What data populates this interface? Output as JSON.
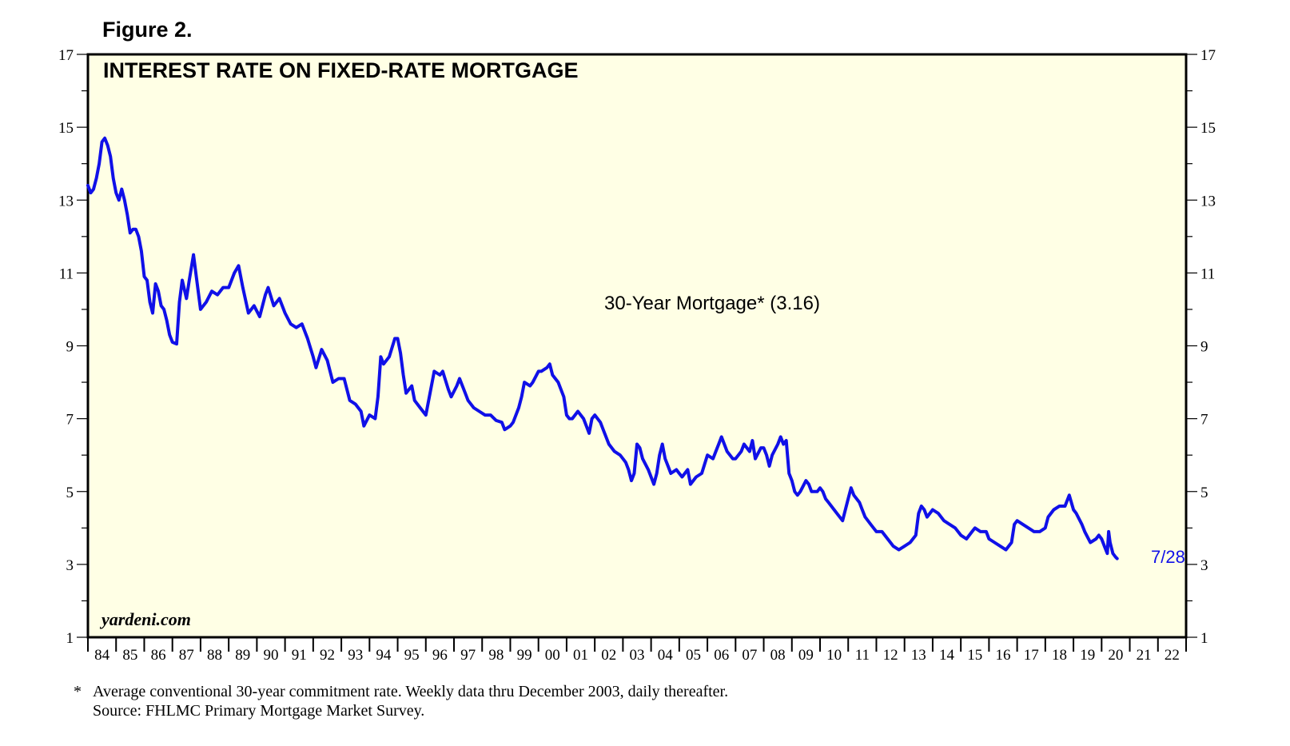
{
  "figure_label": "Figure 2.",
  "footnote": {
    "marker": "*",
    "text": "Average conventional 30-year commitment rate. Weekly data thru December 2003, daily thereafter.",
    "source": "Source: FHLMC Primary Mortgage Market Survey."
  },
  "colors": {
    "plot_background": "#FFFFE5",
    "series_line": "#1010E8",
    "axis": "#000000"
  },
  "chart_data": {
    "type": "line",
    "title": "INTEREST RATE ON FIXED-RATE MORTGAGE",
    "series_label": "30-Year Mortgage* (3.16)",
    "end_label": "7/28",
    "watermark": "yardeni.com",
    "xlabel": "",
    "ylabel": "",
    "ylim": [
      1,
      17
    ],
    "xlim": [
      1984.0,
      2023.0
    ],
    "y_ticks_labeled": [
      1,
      3,
      5,
      7,
      9,
      11,
      13,
      15,
      17
    ],
    "x_tick_labels": [
      "84",
      "85",
      "86",
      "87",
      "88",
      "89",
      "90",
      "91",
      "92",
      "93",
      "94",
      "95",
      "96",
      "97",
      "98",
      "99",
      "00",
      "01",
      "02",
      "03",
      "04",
      "05",
      "06",
      "07",
      "08",
      "09",
      "10",
      "11",
      "12",
      "13",
      "14",
      "15",
      "16",
      "17",
      "18",
      "19",
      "20",
      "21",
      "22"
    ],
    "series": [
      {
        "name": "30-Year Mortgage",
        "points": [
          [
            1984.0,
            13.4
          ],
          [
            1984.1,
            13.2
          ],
          [
            1984.2,
            13.3
          ],
          [
            1984.3,
            13.6
          ],
          [
            1984.4,
            14.0
          ],
          [
            1984.5,
            14.6
          ],
          [
            1984.6,
            14.7
          ],
          [
            1984.7,
            14.5
          ],
          [
            1984.8,
            14.2
          ],
          [
            1984.9,
            13.6
          ],
          [
            1985.0,
            13.2
          ],
          [
            1985.1,
            13.0
          ],
          [
            1985.2,
            13.3
          ],
          [
            1985.3,
            13.0
          ],
          [
            1985.4,
            12.6
          ],
          [
            1985.5,
            12.1
          ],
          [
            1985.6,
            12.2
          ],
          [
            1985.7,
            12.2
          ],
          [
            1985.8,
            12.0
          ],
          [
            1985.9,
            11.6
          ],
          [
            1986.0,
            10.9
          ],
          [
            1986.1,
            10.8
          ],
          [
            1986.2,
            10.2
          ],
          [
            1986.3,
            9.9
          ],
          [
            1986.4,
            10.7
          ],
          [
            1986.5,
            10.5
          ],
          [
            1986.6,
            10.1
          ],
          [
            1986.7,
            10.0
          ],
          [
            1986.8,
            9.7
          ],
          [
            1986.9,
            9.3
          ],
          [
            1987.0,
            9.1
          ],
          [
            1987.15,
            9.05
          ],
          [
            1987.25,
            10.2
          ],
          [
            1987.35,
            10.8
          ],
          [
            1987.5,
            10.3
          ],
          [
            1987.6,
            10.8
          ],
          [
            1987.75,
            11.5
          ],
          [
            1987.85,
            10.9
          ],
          [
            1988.0,
            10.0
          ],
          [
            1988.2,
            10.2
          ],
          [
            1988.4,
            10.5
          ],
          [
            1988.6,
            10.4
          ],
          [
            1988.8,
            10.6
          ],
          [
            1989.0,
            10.6
          ],
          [
            1989.2,
            11.0
          ],
          [
            1989.35,
            11.2
          ],
          [
            1989.5,
            10.6
          ],
          [
            1989.7,
            9.9
          ],
          [
            1989.9,
            10.1
          ],
          [
            1990.1,
            9.8
          ],
          [
            1990.3,
            10.4
          ],
          [
            1990.4,
            10.6
          ],
          [
            1990.6,
            10.1
          ],
          [
            1990.8,
            10.3
          ],
          [
            1991.0,
            9.9
          ],
          [
            1991.2,
            9.6
          ],
          [
            1991.4,
            9.5
          ],
          [
            1991.6,
            9.6
          ],
          [
            1991.8,
            9.2
          ],
          [
            1992.0,
            8.7
          ],
          [
            1992.1,
            8.4
          ],
          [
            1992.3,
            8.9
          ],
          [
            1992.5,
            8.6
          ],
          [
            1992.7,
            8.0
          ],
          [
            1992.9,
            8.1
          ],
          [
            1993.1,
            8.1
          ],
          [
            1993.3,
            7.5
          ],
          [
            1993.5,
            7.4
          ],
          [
            1993.7,
            7.2
          ],
          [
            1993.8,
            6.8
          ],
          [
            1994.0,
            7.1
          ],
          [
            1994.2,
            7.0
          ],
          [
            1994.3,
            7.6
          ],
          [
            1994.4,
            8.7
          ],
          [
            1994.5,
            8.5
          ],
          [
            1994.7,
            8.7
          ],
          [
            1994.9,
            9.2
          ],
          [
            1995.0,
            9.2
          ],
          [
            1995.1,
            8.8
          ],
          [
            1995.2,
            8.2
          ],
          [
            1995.3,
            7.7
          ],
          [
            1995.5,
            7.9
          ],
          [
            1995.6,
            7.5
          ],
          [
            1995.8,
            7.3
          ],
          [
            1996.0,
            7.1
          ],
          [
            1996.2,
            7.9
          ],
          [
            1996.3,
            8.3
          ],
          [
            1996.5,
            8.2
          ],
          [
            1996.6,
            8.3
          ],
          [
            1996.8,
            7.8
          ],
          [
            1996.9,
            7.6
          ],
          [
            1997.1,
            7.9
          ],
          [
            1997.2,
            8.1
          ],
          [
            1997.4,
            7.7
          ],
          [
            1997.5,
            7.5
          ],
          [
            1997.7,
            7.3
          ],
          [
            1997.9,
            7.2
          ],
          [
            1998.1,
            7.1
          ],
          [
            1998.3,
            7.1
          ],
          [
            1998.5,
            6.95
          ],
          [
            1998.7,
            6.9
          ],
          [
            1998.8,
            6.7
          ],
          [
            1999.0,
            6.8
          ],
          [
            1999.1,
            6.9
          ],
          [
            1999.3,
            7.3
          ],
          [
            1999.4,
            7.6
          ],
          [
            1999.5,
            8.0
          ],
          [
            1999.7,
            7.9
          ],
          [
            1999.8,
            8.0
          ],
          [
            2000.0,
            8.3
          ],
          [
            2000.1,
            8.3
          ],
          [
            2000.3,
            8.4
          ],
          [
            2000.4,
            8.5
          ],
          [
            2000.5,
            8.2
          ],
          [
            2000.7,
            8.0
          ],
          [
            2000.9,
            7.6
          ],
          [
            2001.0,
            7.1
          ],
          [
            2001.1,
            7.0
          ],
          [
            2001.2,
            7.0
          ],
          [
            2001.4,
            7.2
          ],
          [
            2001.6,
            7.0
          ],
          [
            2001.7,
            6.8
          ],
          [
            2001.8,
            6.6
          ],
          [
            2001.9,
            7.0
          ],
          [
            2002.0,
            7.1
          ],
          [
            2002.2,
            6.9
          ],
          [
            2002.3,
            6.7
          ],
          [
            2002.5,
            6.3
          ],
          [
            2002.7,
            6.1
          ],
          [
            2002.9,
            6.0
          ],
          [
            2003.0,
            5.9
          ],
          [
            2003.1,
            5.8
          ],
          [
            2003.2,
            5.6
          ],
          [
            2003.3,
            5.3
          ],
          [
            2003.4,
            5.5
          ],
          [
            2003.5,
            6.3
          ],
          [
            2003.6,
            6.2
          ],
          [
            2003.7,
            5.9
          ],
          [
            2003.9,
            5.6
          ],
          [
            2004.0,
            5.4
          ],
          [
            2004.1,
            5.2
          ],
          [
            2004.2,
            5.5
          ],
          [
            2004.3,
            6.0
          ],
          [
            2004.4,
            6.3
          ],
          [
            2004.5,
            5.9
          ],
          [
            2004.6,
            5.7
          ],
          [
            2004.7,
            5.5
          ],
          [
            2004.9,
            5.6
          ],
          [
            2005.0,
            5.5
          ],
          [
            2005.1,
            5.4
          ],
          [
            2005.3,
            5.6
          ],
          [
            2005.4,
            5.2
          ],
          [
            2005.6,
            5.4
          ],
          [
            2005.8,
            5.5
          ],
          [
            2006.0,
            6.0
          ],
          [
            2006.2,
            5.9
          ],
          [
            2006.3,
            6.1
          ],
          [
            2006.4,
            6.3
          ],
          [
            2006.5,
            6.5
          ],
          [
            2006.7,
            6.1
          ],
          [
            2006.9,
            5.9
          ],
          [
            2007.0,
            5.9
          ],
          [
            2007.2,
            6.1
          ],
          [
            2007.3,
            6.3
          ],
          [
            2007.5,
            6.1
          ],
          [
            2007.6,
            6.4
          ],
          [
            2007.7,
            5.9
          ],
          [
            2007.9,
            6.2
          ],
          [
            2008.0,
            6.2
          ],
          [
            2008.1,
            6.0
          ],
          [
            2008.2,
            5.7
          ],
          [
            2008.3,
            6.0
          ],
          [
            2008.5,
            6.3
          ],
          [
            2008.6,
            6.5
          ],
          [
            2008.7,
            6.3
          ],
          [
            2008.8,
            6.4
          ],
          [
            2008.9,
            5.5
          ],
          [
            2009.0,
            5.3
          ],
          [
            2009.1,
            5.0
          ],
          [
            2009.2,
            4.9
          ],
          [
            2009.3,
            5.0
          ],
          [
            2009.5,
            5.3
          ],
          [
            2009.6,
            5.2
          ],
          [
            2009.7,
            5.0
          ],
          [
            2009.9,
            5.0
          ],
          [
            2010.0,
            5.1
          ],
          [
            2010.1,
            5.0
          ],
          [
            2010.2,
            4.8
          ],
          [
            2010.3,
            4.7
          ],
          [
            2010.5,
            4.5
          ],
          [
            2010.6,
            4.4
          ],
          [
            2010.8,
            4.2
          ],
          [
            2010.9,
            4.5
          ],
          [
            2011.0,
            4.8
          ],
          [
            2011.1,
            5.1
          ],
          [
            2011.2,
            4.9
          ],
          [
            2011.4,
            4.7
          ],
          [
            2011.5,
            4.5
          ],
          [
            2011.6,
            4.3
          ],
          [
            2011.8,
            4.1
          ],
          [
            2011.9,
            4.0
          ],
          [
            2012.0,
            3.9
          ],
          [
            2012.2,
            3.9
          ],
          [
            2012.3,
            3.8
          ],
          [
            2012.5,
            3.6
          ],
          [
            2012.6,
            3.5
          ],
          [
            2012.8,
            3.4
          ],
          [
            2013.0,
            3.5
          ],
          [
            2013.2,
            3.6
          ],
          [
            2013.4,
            3.8
          ],
          [
            2013.5,
            4.4
          ],
          [
            2013.6,
            4.6
          ],
          [
            2013.7,
            4.5
          ],
          [
            2013.8,
            4.3
          ],
          [
            2014.0,
            4.5
          ],
          [
            2014.2,
            4.4
          ],
          [
            2014.4,
            4.2
          ],
          [
            2014.6,
            4.1
          ],
          [
            2014.8,
            4.0
          ],
          [
            2015.0,
            3.8
          ],
          [
            2015.2,
            3.7
          ],
          [
            2015.4,
            3.9
          ],
          [
            2015.5,
            4.0
          ],
          [
            2015.7,
            3.9
          ],
          [
            2015.9,
            3.9
          ],
          [
            2016.0,
            3.7
          ],
          [
            2016.2,
            3.6
          ],
          [
            2016.4,
            3.5
          ],
          [
            2016.6,
            3.4
          ],
          [
            2016.8,
            3.6
          ],
          [
            2016.9,
            4.1
          ],
          [
            2017.0,
            4.2
          ],
          [
            2017.2,
            4.1
          ],
          [
            2017.4,
            4.0
          ],
          [
            2017.6,
            3.9
          ],
          [
            2017.8,
            3.9
          ],
          [
            2018.0,
            4.0
          ],
          [
            2018.1,
            4.3
          ],
          [
            2018.3,
            4.5
          ],
          [
            2018.5,
            4.6
          ],
          [
            2018.7,
            4.6
          ],
          [
            2018.85,
            4.9
          ],
          [
            2019.0,
            4.5
          ],
          [
            2019.1,
            4.4
          ],
          [
            2019.3,
            4.1
          ],
          [
            2019.4,
            3.9
          ],
          [
            2019.6,
            3.6
          ],
          [
            2019.8,
            3.7
          ],
          [
            2019.9,
            3.8
          ],
          [
            2020.0,
            3.7
          ],
          [
            2020.1,
            3.5
          ],
          [
            2020.2,
            3.3
          ],
          [
            2020.25,
            3.9
          ],
          [
            2020.3,
            3.6
          ],
          [
            2020.4,
            3.3
          ],
          [
            2020.5,
            3.2
          ],
          [
            2020.55,
            3.16
          ]
        ]
      }
    ]
  }
}
